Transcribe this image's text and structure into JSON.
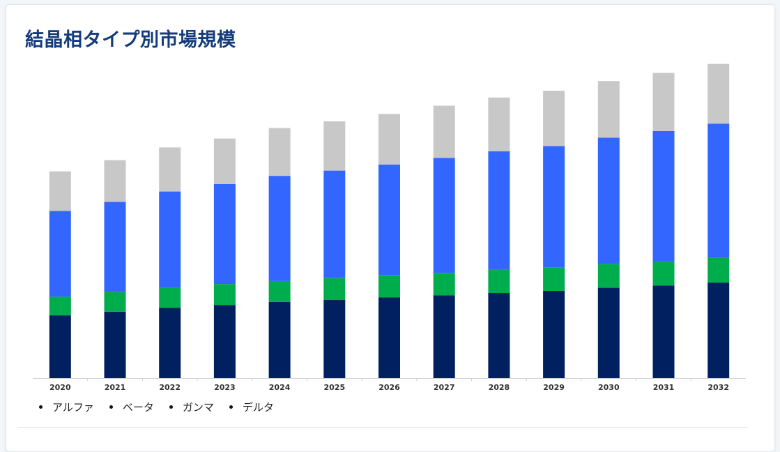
{
  "title": "結晶相タイプ別市場規模",
  "colors": {
    "アルファ": "#00205f",
    "ベータ": "#00ad4c",
    "ガンマ": "#3366ff",
    "デルタ": "#c8c8c8"
  },
  "chart_data": {
    "type": "bar",
    "stacked": true,
    "categories": [
      "2020",
      "2021",
      "2022",
      "2023",
      "2024",
      "2025",
      "2026",
      "2027",
      "2028",
      "2029",
      "2030",
      "2031",
      "2032"
    ],
    "series": [
      {
        "name": "アルファ",
        "values": [
          84,
          89,
          94,
          98,
          102,
          105,
          108,
          111,
          114,
          117,
          121,
          124,
          128
        ]
      },
      {
        "name": "ベータ",
        "values": [
          25,
          26,
          27,
          28,
          28,
          29,
          30,
          30,
          31,
          31,
          32,
          32,
          33
        ]
      },
      {
        "name": "ガンマ",
        "values": [
          115,
          121,
          129,
          134,
          141,
          144,
          148,
          154,
          159,
          163,
          169,
          175,
          180
        ]
      },
      {
        "name": "デルタ",
        "values": [
          53,
          56,
          59,
          61,
          64,
          66,
          68,
          70,
          72,
          74,
          76,
          78,
          80
        ]
      }
    ],
    "ylim": [
      0,
      430
    ],
    "grid": false,
    "legend_position": "bottom-left"
  }
}
